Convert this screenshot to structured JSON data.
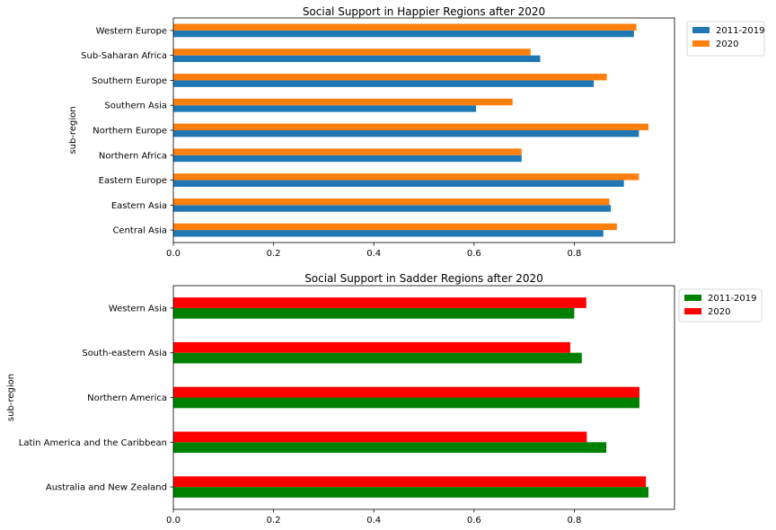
{
  "chart_data": [
    {
      "type": "bar",
      "orientation": "horizontal",
      "title": "Social Support in Happier Regions after 2020",
      "xlabel": "",
      "ylabel": "sub-region",
      "xlim": [
        0,
        1.0
      ],
      "xticks": [
        "0.0",
        "0.2",
        "0.4",
        "0.6",
        "0.8"
      ],
      "grid": false,
      "legend": "outside top-right",
      "categories": [
        "Central Asia",
        "Eastern Asia",
        "Eastern Europe",
        "Northern Africa",
        "Northern Europe",
        "Southern Asia",
        "Southern Europe",
        "Sub-Saharan Africa",
        "Western Europe"
      ],
      "series": [
        {
          "name": "2011-2019",
          "color": "#1f77b4",
          "values": [
            0.858,
            0.873,
            0.899,
            0.695,
            0.929,
            0.604,
            0.839,
            0.732,
            0.919
          ]
        },
        {
          "name": "2020",
          "color": "#ff7f0e",
          "values": [
            0.885,
            0.87,
            0.929,
            0.695,
            0.948,
            0.677,
            0.865,
            0.713,
            0.924
          ]
        }
      ]
    },
    {
      "type": "bar",
      "orientation": "horizontal",
      "title": "Social Support in Sadder Regions after 2020",
      "xlabel": "",
      "ylabel": "sub-region",
      "xlim": [
        0,
        1.0
      ],
      "xticks": [
        "0.0",
        "0.2",
        "0.4",
        "0.6",
        "0.8"
      ],
      "grid": false,
      "legend": "outside top-right",
      "categories": [
        "Australia and New Zealand",
        "Latin America and the Caribbean",
        "Northern America",
        "South-eastern Asia",
        "Western Asia"
      ],
      "series": [
        {
          "name": "2011-2019",
          "color": "#008000",
          "values": [
            0.948,
            0.864,
            0.93,
            0.815,
            0.8
          ]
        },
        {
          "name": "2020",
          "color": "#ff0000",
          "values": [
            0.943,
            0.825,
            0.93,
            0.792,
            0.824
          ]
        }
      ]
    }
  ]
}
